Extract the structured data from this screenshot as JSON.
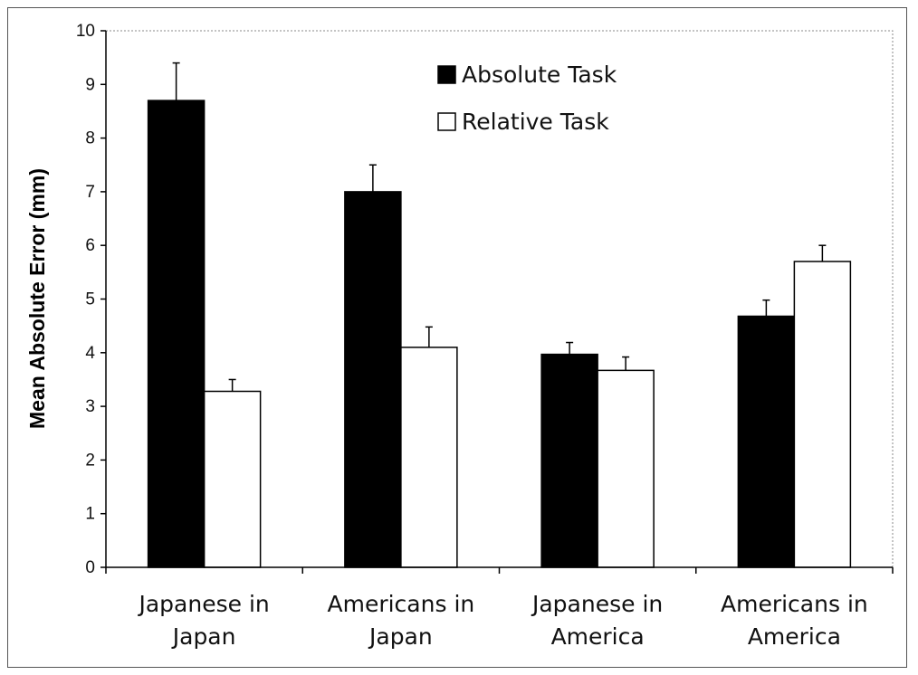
{
  "chart_data": {
    "type": "bar",
    "title": "",
    "xlabel": "",
    "ylabel": "Mean Absolute Error (mm)",
    "ylim": [
      0,
      10
    ],
    "yticks": [
      "0",
      "1",
      "2",
      "3",
      "4",
      "5",
      "6",
      "7",
      "8",
      "9",
      "10"
    ],
    "categories": [
      [
        "Japanese in",
        "Japan"
      ],
      [
        "Americans in",
        "Japan"
      ],
      [
        "Japanese in",
        "America"
      ],
      [
        "Americans in",
        "America"
      ]
    ],
    "series": [
      {
        "name": "Absolute Task",
        "color": "#000000",
        "values": [
          8.7,
          7.0,
          3.97,
          4.68
        ],
        "errors": [
          0.7,
          0.5,
          0.22,
          0.3
        ]
      },
      {
        "name": "Relative Task",
        "color": "#ffffff",
        "values": [
          3.28,
          4.1,
          3.67,
          5.7
        ],
        "errors": [
          0.22,
          0.38,
          0.25,
          0.3
        ]
      }
    ],
    "legend": "top-center",
    "grid": false
  }
}
